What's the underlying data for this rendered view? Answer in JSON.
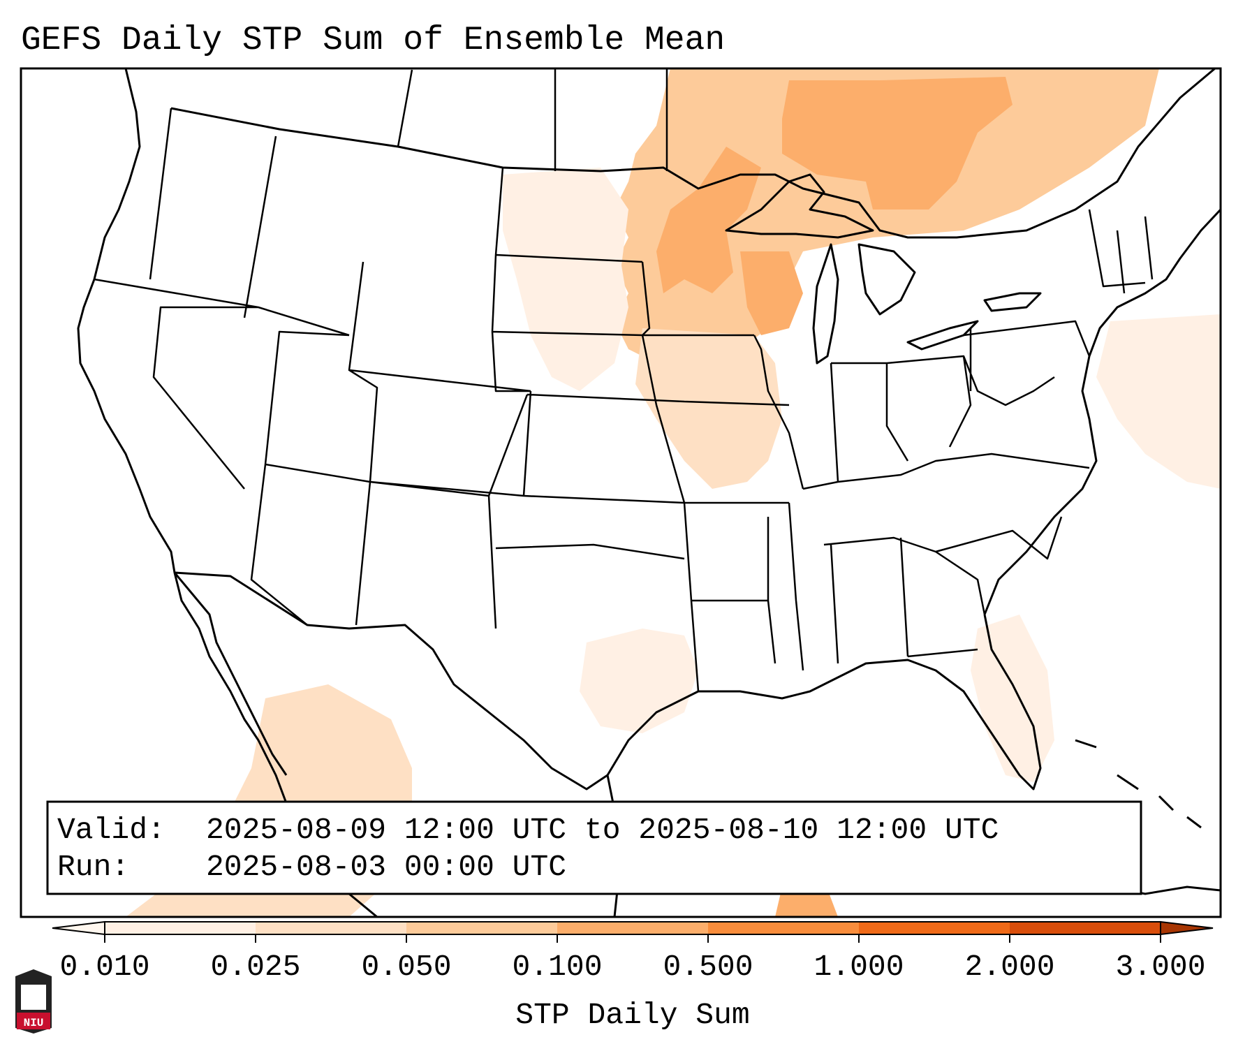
{
  "title": "GEFS Daily STP Sum of Ensemble Mean",
  "info_box": {
    "valid_label": "Valid:",
    "valid_value": "2025-08-09 12:00 UTC to 2025-08-10 12:00 UTC",
    "run_label": "Run:",
    "run_value": "2025-08-03 00:00 UTC"
  },
  "colorbar": {
    "label": "STP Daily Sum",
    "ticks": [
      "0.010",
      "0.025",
      "0.050",
      "0.100",
      "0.500",
      "1.000",
      "2.000",
      "3.000"
    ],
    "colors": [
      "#fff0e4",
      "#fee0c4",
      "#fdcb9a",
      "#fcae6b",
      "#f98d3c",
      "#ef6a18",
      "#d94e0b",
      "#a83603"
    ]
  },
  "logo": {
    "text": "NIU",
    "color": "#c8102e"
  },
  "colors": {
    "outline": "#000000",
    "background": "#ffffff"
  },
  "shading": {
    "regions": [
      {
        "name": "upper-midwest-ontario",
        "level": 2
      },
      {
        "name": "upper-midwest-ontario-core",
        "level": 3
      },
      {
        "name": "iowa-illinois",
        "level": 1
      },
      {
        "name": "nebraska-dakotas",
        "level": 0
      },
      {
        "name": "atlantic-offshore",
        "level": 0
      },
      {
        "name": "east-texas-gulf",
        "level": 0
      },
      {
        "name": "florida-southeast",
        "level": 0
      },
      {
        "name": "northwest-mexico",
        "level": 1
      },
      {
        "name": "yucatan",
        "level": 3
      }
    ]
  }
}
